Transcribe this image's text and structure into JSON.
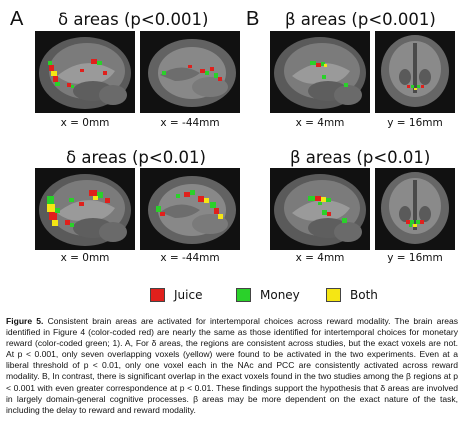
{
  "panels": {
    "A": {
      "letter": "A",
      "title_top": "δ areas (p<0.001)",
      "title_bottom": "δ areas (p<0.01)",
      "captions_top": [
        "x = 0mm",
        "x = -44mm"
      ],
      "captions_bottom": [
        "x = 0mm",
        "x = -44mm"
      ]
    },
    "B": {
      "letter": "B",
      "title_top": "β areas (p<0.001)",
      "title_bottom": "β areas (p<0.01)",
      "captions_top": [
        "x = 4mm",
        "y = 16mm"
      ],
      "captions_bottom": [
        "x = 4mm",
        "y = 16mm"
      ]
    }
  },
  "legend": [
    {
      "label": "Juice",
      "color": "#e0201c"
    },
    {
      "label": "Money",
      "color": "#2ad12a"
    },
    {
      "label": "Both",
      "color": "#f5e614"
    }
  ],
  "caption": {
    "figure_label": "Figure 5.",
    "text": "Consistent brain areas are activated for intertemporal choices across reward modality. The brain areas identified in Figure 4 (color-coded red) are nearly the same as those identified for intertemporal choices for monetary reward (color-coded green; 1). A, For δ areas, the regions are consistent across studies, but the exact voxels are not. At p < 0.001, only seven overlapping voxels (yellow) were found to be activated in the two experiments. Even at a liberal threshold of p < 0.01, only one voxel each in the NAc and PCC are consistently activated across reward modality. B, In contrast, there is significant overlap in the exact voxels found in the two studies among the β regions at p < 0.001 with even greater correspondence at p < 0.01. These findings support the hypothesis that δ areas are involved in largely domain-general cognitive processes. β areas may be more dependent on the exact nature of the task, including the delay to reward and reward modality."
  },
  "colors": {
    "juice": "#e0201c",
    "money": "#2ad12a",
    "both": "#f5e614",
    "background": "#ffffff"
  }
}
